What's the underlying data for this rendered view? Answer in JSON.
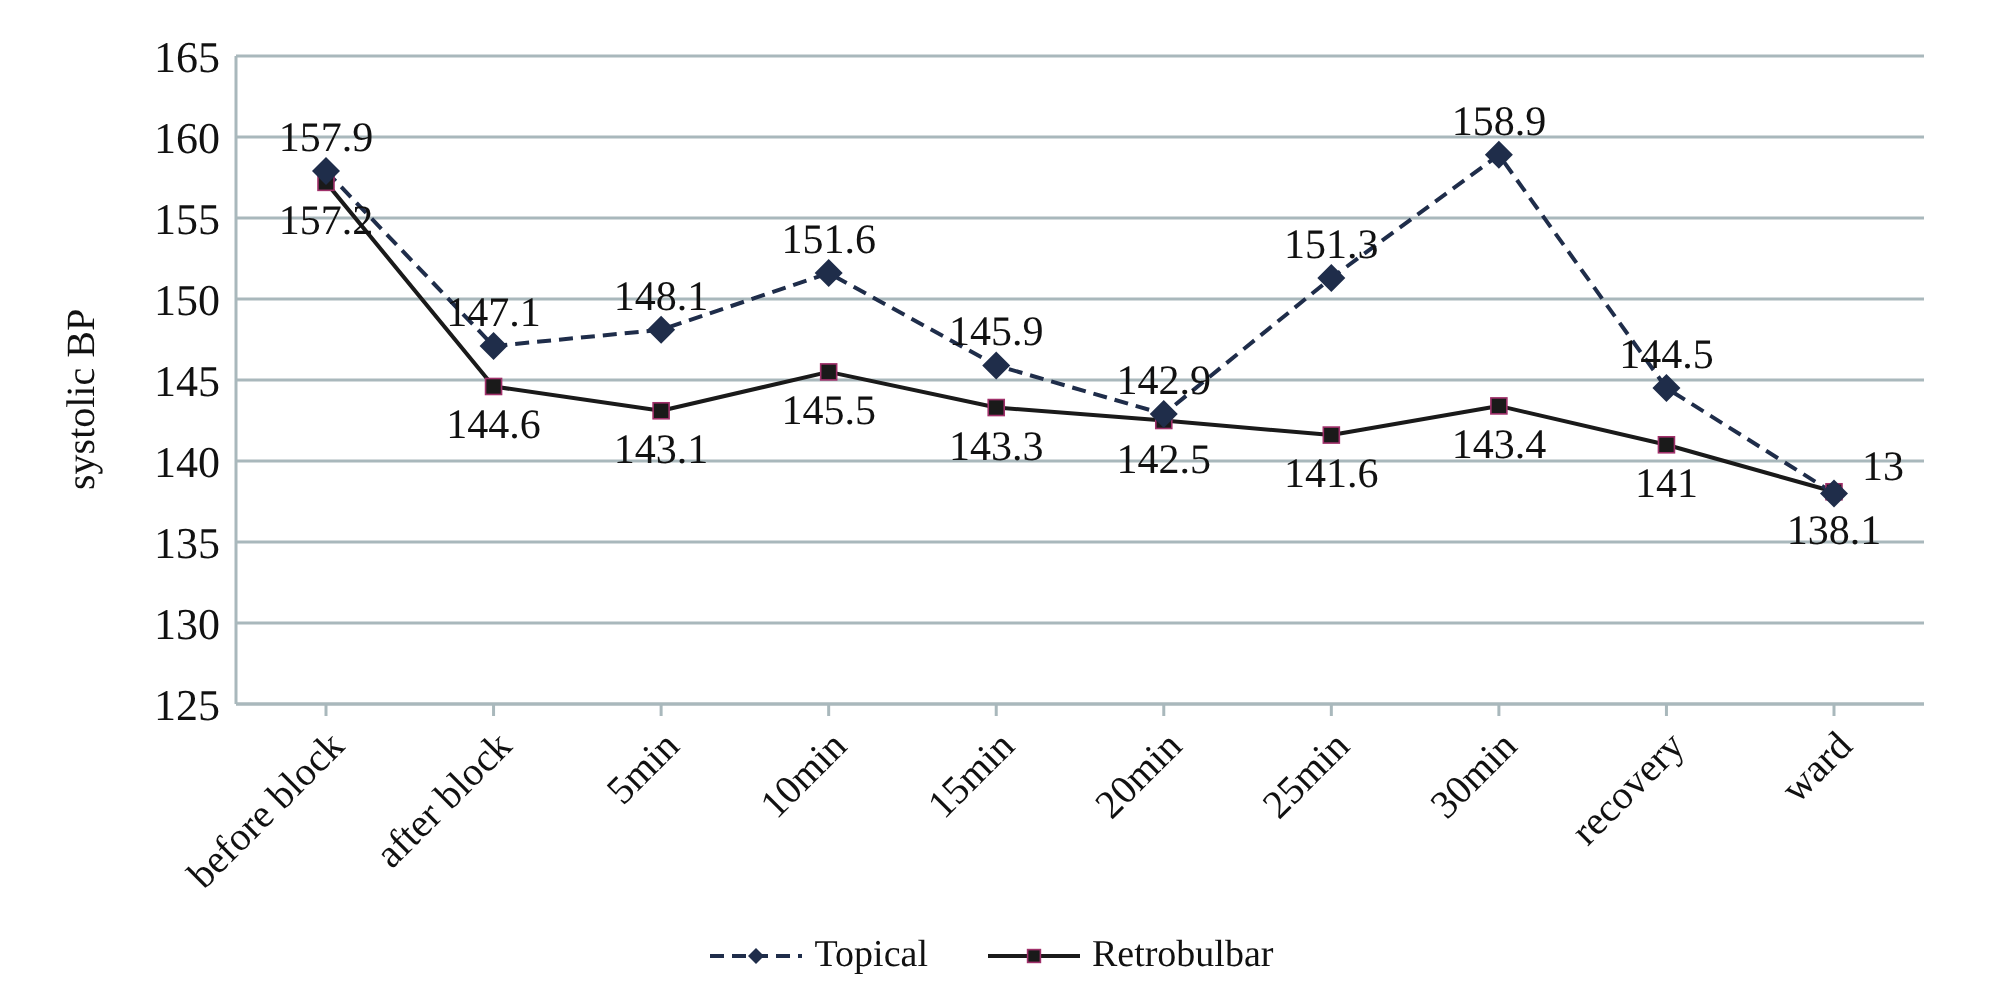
{
  "chart_data": {
    "type": "line",
    "ylabel": "systolic BP",
    "categories": [
      "before block",
      "after block",
      "5min",
      "10min",
      "15min",
      "20min",
      "25min",
      "30min",
      "recovery",
      "ward"
    ],
    "series": [
      {
        "name": "Topical",
        "color": "#1f2d4a",
        "line_style": "dashed",
        "marker": "diamond",
        "values": [
          157.9,
          147.1,
          148.1,
          151.6,
          145.9,
          142.9,
          151.3,
          158.9,
          144.5,
          138.0
        ],
        "value_labels": [
          "157.9",
          "147.1",
          "148.1",
          "151.6",
          "145.9",
          "142.9",
          "151.3",
          "158.9",
          "144.5",
          null
        ]
      },
      {
        "name": "Retrobulbar",
        "color": "#1a1a1a",
        "line_style": "solid",
        "marker": "square",
        "values": [
          157.2,
          144.6,
          143.1,
          145.5,
          143.3,
          142.5,
          141.6,
          143.4,
          141,
          138.1
        ],
        "value_labels": [
          "157.2",
          "144.6",
          "143.1",
          "145.5",
          "143.3",
          "142.5",
          "141.6",
          "143.4",
          "141",
          "138.1"
        ]
      }
    ],
    "ylim": [
      125,
      165
    ],
    "yticks": [
      125,
      130,
      135,
      140,
      145,
      150,
      155,
      160,
      165
    ],
    "annotations": [
      {
        "text": "13",
        "x": "ward",
        "y": 138.0
      }
    ],
    "grid": "y",
    "legend": "bottom"
  }
}
